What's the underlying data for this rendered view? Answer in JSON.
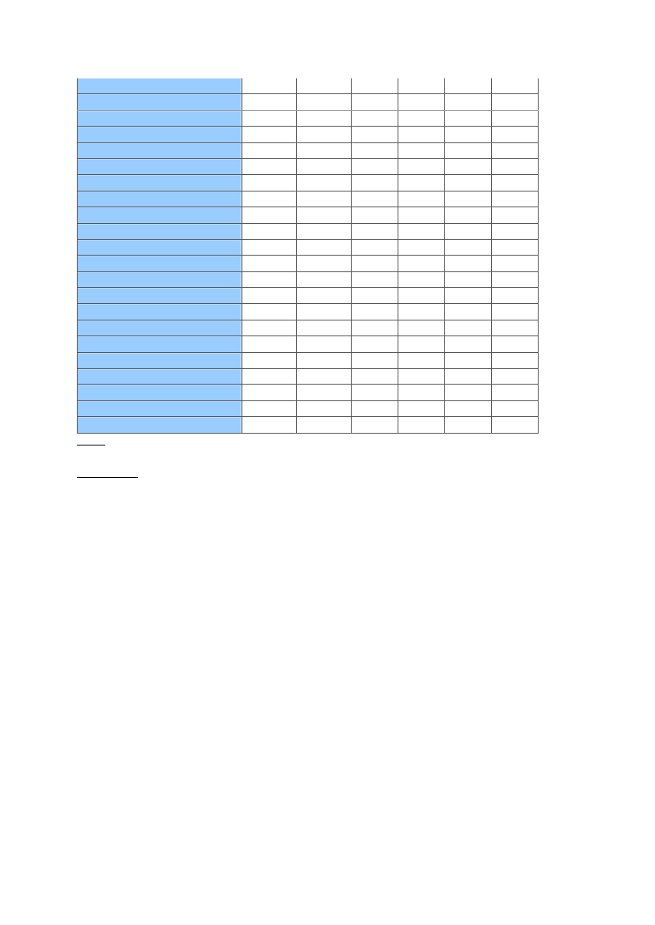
{
  "colors": {
    "label_column_fill": "#99ccff",
    "grid_line": "#555555"
  },
  "table": {
    "rows": [
      [
        "",
        "",
        "",
        "",
        "",
        "",
        ""
      ],
      [
        "",
        "",
        "",
        "",
        "",
        "",
        ""
      ],
      [
        "",
        "",
        "",
        "",
        "",
        "",
        ""
      ],
      [
        "",
        "",
        "",
        "",
        "",
        "",
        ""
      ],
      [
        "",
        "",
        "",
        "",
        "",
        "",
        ""
      ],
      [
        "",
        "",
        "",
        "",
        "",
        "",
        ""
      ],
      [
        "",
        "",
        "",
        "",
        "",
        "",
        ""
      ],
      [
        "",
        "",
        "",
        "",
        "",
        "",
        ""
      ],
      [
        "",
        "",
        "",
        "",
        "",
        "",
        ""
      ],
      [
        "",
        "",
        "",
        "",
        "",
        "",
        ""
      ],
      [
        "",
        "",
        "",
        "",
        "",
        "",
        ""
      ],
      [
        "",
        "",
        "",
        "",
        "",
        "",
        ""
      ],
      [
        "",
        "",
        "",
        "",
        "",
        "",
        ""
      ],
      [
        "",
        "",
        "",
        "",
        "",
        "",
        ""
      ],
      [
        "",
        "",
        "",
        "",
        "",
        "",
        ""
      ],
      [
        "",
        "",
        "",
        "",
        "",
        "",
        ""
      ],
      [
        "",
        "",
        "",
        "",
        "",
        "",
        ""
      ],
      [
        "",
        "",
        "",
        "",
        "",
        "",
        ""
      ],
      [
        "",
        "",
        "",
        "",
        "",
        "",
        ""
      ],
      [
        "",
        "",
        "",
        "",
        "",
        "",
        ""
      ],
      [
        "",
        "",
        "",
        "",
        "",
        "",
        ""
      ],
      [
        "",
        "",
        "",
        "",
        "",
        "",
        ""
      ]
    ]
  },
  "notes": {
    "first": "",
    "second": ""
  }
}
